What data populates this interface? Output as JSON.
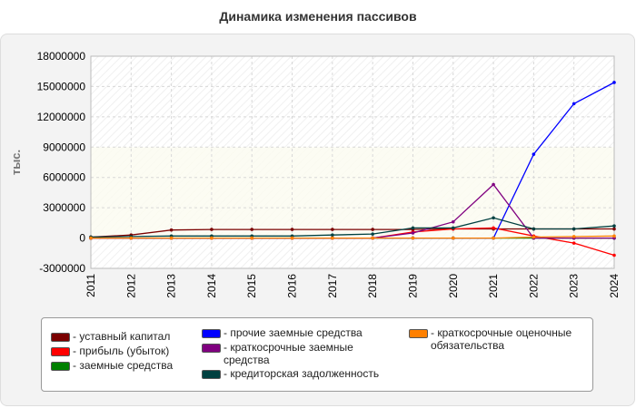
{
  "chart_data": {
    "type": "line",
    "title": "Динамика изменения пассивов",
    "ylabel": "тыс.",
    "xlabel": "",
    "x": [
      "2011",
      "2012",
      "2013",
      "2014",
      "2015",
      "2016",
      "2017",
      "2018",
      "2019",
      "2020",
      "2021",
      "2022",
      "2023",
      "2024"
    ],
    "ylim": [
      -3000000,
      18000000
    ],
    "yticks": [
      "18000000",
      "15000000",
      "12000000",
      "9000000",
      "6000000",
      "3000000",
      "0",
      "-3000000"
    ],
    "ytick_values": [
      18000000,
      15000000,
      12000000,
      9000000,
      6000000,
      3000000,
      0,
      -3000000
    ],
    "grid": true,
    "legend_position": "bottom",
    "series": [
      {
        "name": "- уставный капитал",
        "color": "#7a0000",
        "values": [
          100000,
          300000,
          800000,
          850000,
          850000,
          850000,
          850000,
          850000,
          850000,
          900000,
          900000,
          900000,
          900000,
          900000
        ]
      },
      {
        "name": "- прибыль (убыток)",
        "color": "#ff0000",
        "values": [
          0,
          0,
          0,
          0,
          0,
          0,
          0,
          0,
          600000,
          900000,
          1000000,
          200000,
          -500000,
          -1700000
        ]
      },
      {
        "name": "- заемные средства",
        "color": "#008000",
        "values": [
          0,
          0,
          0,
          0,
          0,
          0,
          0,
          0,
          0,
          0,
          0,
          0,
          0,
          0
        ]
      },
      {
        "name": "- прочие заемные средства",
        "color": "#0000ff",
        "values": [
          0,
          0,
          0,
          0,
          0,
          0,
          0,
          0,
          0,
          0,
          0,
          8300000,
          13300000,
          15400000
        ]
      },
      {
        "name": "- краткосрочные заемные средства",
        "color": "#800080",
        "values": [
          0,
          0,
          0,
          0,
          0,
          0,
          0,
          0,
          500000,
          1600000,
          5300000,
          0,
          0,
          0
        ]
      },
      {
        "name": "- кредиторская задолженность",
        "color": "#004040",
        "values": [
          100000,
          150000,
          200000,
          200000,
          200000,
          200000,
          300000,
          400000,
          1000000,
          1000000,
          2000000,
          900000,
          900000,
          1200000
        ]
      },
      {
        "name": "- краткосрочные оценочные обязательства",
        "color": "#ff8000",
        "values": [
          0,
          0,
          0,
          0,
          0,
          0,
          0,
          0,
          0,
          0,
          0,
          100000,
          150000,
          200000
        ]
      }
    ]
  }
}
